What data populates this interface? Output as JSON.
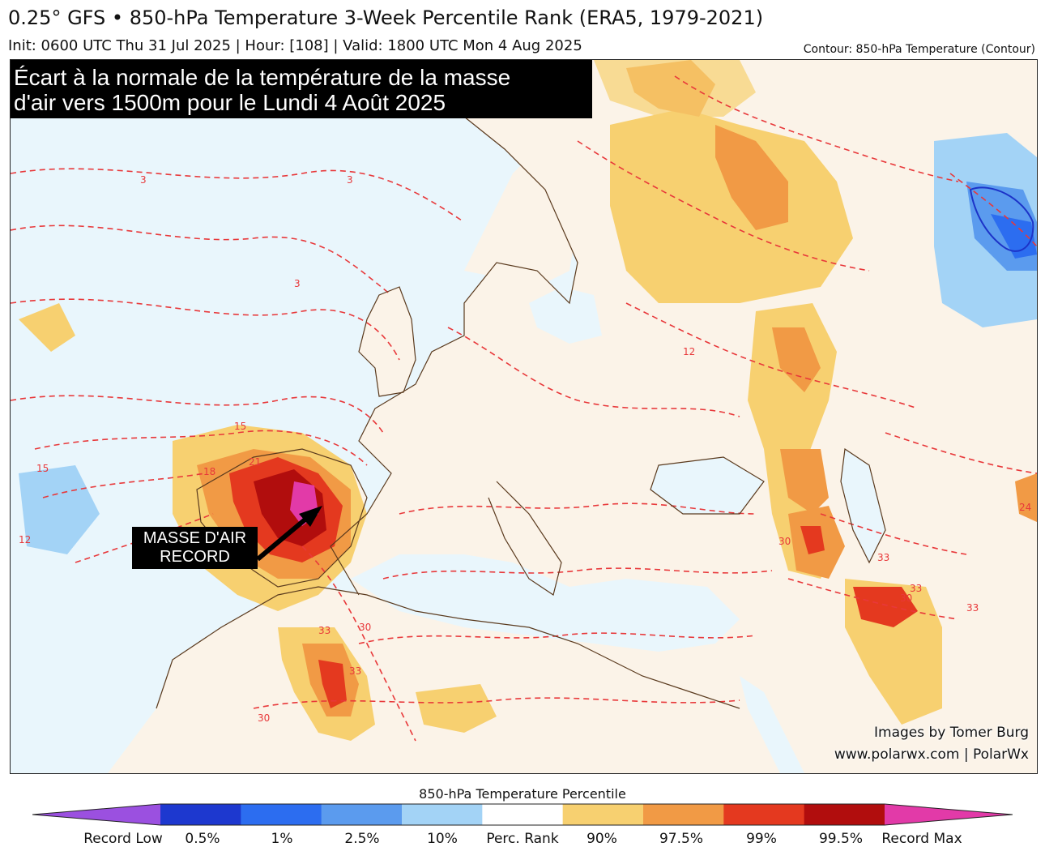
{
  "header": {
    "title": "0.25° GFS • 850-hPa Temperature 3-Week Percentile Rank (ERA5, 1979-2021)",
    "subtitle": "Init: 0600 UTC Thu 31 Jul 2025 | Hour: [108] | Valid: 1800 UTC Mon 4 Aug 2025",
    "contour_note": "Contour: 850-hPa Temperature (Contour)"
  },
  "map": {
    "headline_line1": "Écart à la normale de la température de la masse",
    "headline_line2": "d'air vers 1500m pour le Lundi 4 Août 2025",
    "annotation_line1": "MASSE D'AIR",
    "annotation_line2": "RECORD",
    "credit_line1": "Images by Tomer Burg",
    "credit_line2": "www.polarwx.com | PolarWx",
    "contour_labels": [
      "3",
      "3",
      "3",
      "12",
      "12",
      "15",
      "15",
      "18",
      "21",
      "30",
      "30",
      "30",
      "33",
      "33",
      "33",
      "33",
      "33",
      "30",
      "24"
    ],
    "colors": {
      "land": "#fbf3e8",
      "sea": "#e9f6fc",
      "contour": "#e8383a",
      "coast": "#5a3a1e",
      "cold_contour": "#1c33c8"
    }
  },
  "legend": {
    "title": "850-hPa Temperature Percentile",
    "labels": [
      "Record Low",
      "0.5%",
      "1%",
      "2.5%",
      "10%",
      "Perc. Rank",
      "90%",
      "97.5%",
      "99%",
      "99.5%",
      "Record Max"
    ],
    "colors": [
      "#9b50e0",
      "#1d38cf",
      "#2c6df0",
      "#5b9bee",
      "#a3d3f6",
      "#ffffff",
      "#f7d070",
      "#f19a45",
      "#e4391f",
      "#b10d0d",
      "#e23aa8"
    ]
  }
}
